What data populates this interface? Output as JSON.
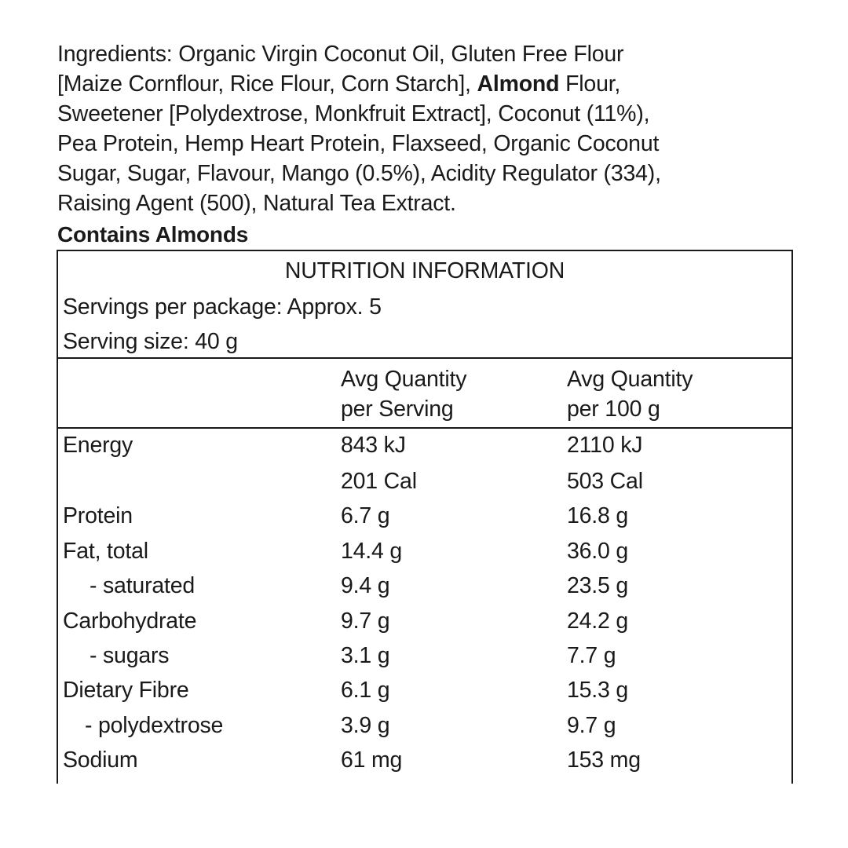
{
  "ingredients": {
    "lines": [
      "Ingredients: Organic Virgin Coconut Oil, Gluten Free Flour",
      "[Maize Cornflour, Rice Flour, Corn Starch], ",
      "Sweetener [Polydextrose, Monkfruit Extract], Coconut (11%),",
      "Pea Protein, Hemp Heart Protein, Flaxseed, Organic Coconut",
      "Sugar, Sugar, Flavour, Mango (0.5%), Acidity Regulator (334),",
      "Raising Agent (500), Natural Tea Extract."
    ],
    "allergen_bold": "Almond",
    "line2_tail": " Flour,",
    "contains": "Contains Almonds"
  },
  "nutrition": {
    "title": "NUTRITION INFORMATION",
    "servings_per_package": "Servings per package: Approx. 5",
    "serving_size": "Serving size: 40 g",
    "columns": {
      "per_serving": [
        "Avg Quantity",
        "per Serving"
      ],
      "per_100g": [
        "Avg Quantity",
        "per 100 g"
      ]
    },
    "rows": [
      {
        "label": "Energy",
        "serving": "843 kJ",
        "per100": "2110 kJ"
      },
      {
        "label": "",
        "serving": "201 Cal",
        "per100": "503 Cal"
      },
      {
        "label": "Protein",
        "serving": "6.7 g",
        "per100": "16.8 g"
      },
      {
        "label": "Fat, total",
        "serving": "14.4 g",
        "per100": "36.0 g"
      },
      {
        "label": "- saturated",
        "serving": "9.4 g",
        "per100": "23.5 g"
      },
      {
        "label": "Carbohydrate",
        "serving": "9.7 g",
        "per100": "24.2 g"
      },
      {
        "label": "- sugars",
        "serving": "3.1 g",
        "per100": "7.7 g"
      },
      {
        "label": "Dietary Fibre",
        "serving": "6.1 g",
        "per100": "15.3 g"
      },
      {
        "label": "- polydextrose",
        "serving": "3.9 g",
        "per100": "9.7 g"
      },
      {
        "label": "Sodium",
        "serving": "61 mg",
        "per100": "153 mg"
      }
    ]
  }
}
